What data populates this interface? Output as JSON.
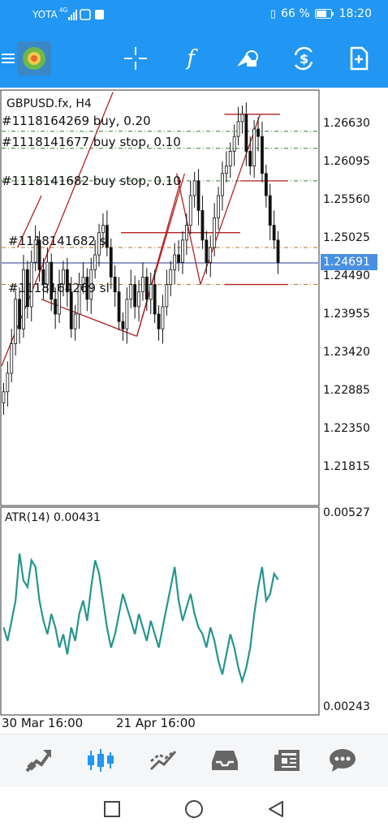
{
  "status_bar": {
    "carrier": "YOTA",
    "network": "4G",
    "battery": "66 %",
    "time": "18:20"
  },
  "toolbar": {
    "icons": [
      "menu-icon",
      "app-logo-icon",
      "crosshair-icon",
      "function-icon",
      "objects-icon",
      "trade-icon",
      "new-chart-icon"
    ]
  },
  "chart": {
    "symbol": "GBPUSD.fx, H4",
    "orders": [
      "#1118164269 buy, 0.20",
      "#1118141677 buy stop, 0.10",
      "#1118141682 buy stop, 0.10",
      "#1118141682 sl",
      "#1118164269 sl"
    ],
    "price_ticks": [
      "1.26630",
      "1.26095",
      "1.25560",
      "1.25025",
      "1.24490",
      "1.23955",
      "1.23420",
      "1.22885",
      "1.22350",
      "1.21815"
    ],
    "current_price": "1.24691",
    "indicator_label": "ATR(14) 0.00431",
    "indicator_ticks": [
      "0.00527",
      "0.00243"
    ],
    "time_labels": [
      "30 Mar 16:00",
      "21 Apr 16:00"
    ]
  },
  "chart_data": {
    "type": "candlestick",
    "price_close": [
      1.2295,
      1.232,
      1.236,
      1.242,
      1.238,
      1.246,
      1.241,
      1.247,
      1.25,
      1.246,
      1.244,
      1.247,
      1.242,
      1.24,
      1.244,
      1.246,
      1.243,
      1.238,
      1.24,
      1.244,
      1.245,
      1.242,
      1.246,
      1.248,
      1.251,
      1.252,
      1.249,
      1.245,
      1.243,
      1.239,
      1.238,
      1.242,
      1.244,
      1.241,
      1.243,
      1.245,
      1.242,
      1.244,
      1.24,
      1.238,
      1.241,
      1.244,
      1.246,
      1.248,
      1.247,
      1.25,
      1.252,
      1.256,
      1.258,
      1.254,
      1.25,
      1.247,
      1.249,
      1.253,
      1.256,
      1.259,
      1.26,
      1.262,
      1.264,
      1.266,
      1.267,
      1.262,
      1.26,
      1.265,
      1.264,
      1.259,
      1.256,
      1.252,
      1.25,
      1.247
    ],
    "atr_values": [
      0.0036,
      0.0034,
      0.0037,
      0.004,
      0.0047,
      0.0043,
      0.0042,
      0.0046,
      0.0045,
      0.004,
      0.0037,
      0.0035,
      0.0038,
      0.0036,
      0.0033,
      0.0035,
      0.0032,
      0.0036,
      0.0034,
      0.0038,
      0.004,
      0.0037,
      0.0042,
      0.0046,
      0.0044,
      0.004,
      0.0036,
      0.0033,
      0.0035,
      0.0038,
      0.0041,
      0.0039,
      0.0037,
      0.0035,
      0.0038,
      0.0036,
      0.0034,
      0.0037,
      0.0035,
      0.0033,
      0.0036,
      0.0039,
      0.0042,
      0.0045,
      0.004,
      0.0037,
      0.0039,
      0.0041,
      0.0038,
      0.0036,
      0.0035,
      0.0033,
      0.0036,
      0.0034,
      0.0031,
      0.0029,
      0.0032,
      0.0035,
      0.0033,
      0.003,
      0.0028,
      0.003,
      0.0033,
      0.0038,
      0.0042,
      0.0045,
      0.004,
      0.0041,
      0.0044,
      0.00431
    ],
    "price_ylim": [
      1.215,
      1.2695
    ],
    "atr_ylim": [
      0.00243,
      0.00527
    ],
    "order_prices": [
      1.2647,
      1.2624,
      1.258,
      1.249,
      1.244
    ],
    "colors": {
      "candle": "#111111",
      "atr_line": "#26958f",
      "trendline": "#b22222",
      "order_level": "#2e7d32",
      "sl_level": "#c07020",
      "current": "#283593"
    }
  }
}
